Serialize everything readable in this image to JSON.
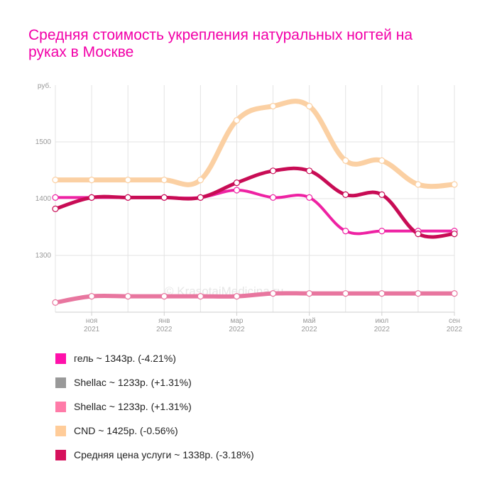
{
  "title": "Средняя стоимость укрепления натуральных ногтей на руках в Москве",
  "watermark": "© KrasotaiMedicina.ru",
  "chart_data": {
    "type": "line",
    "y_unit": "руб.",
    "ylim": [
      1200,
      1600
    ],
    "y_ticks": [
      {
        "value": 1300,
        "label": "1300"
      },
      {
        "value": 1400,
        "label": "1400"
      },
      {
        "value": 1500,
        "label": "1500"
      }
    ],
    "x_ticks": [
      {
        "month": "ноя",
        "year": "2021"
      },
      {
        "month": "янв",
        "year": "2022"
      },
      {
        "month": "мар",
        "year": "2022"
      },
      {
        "month": "май",
        "year": "2022"
      },
      {
        "month": "июл",
        "year": "2022"
      },
      {
        "month": "сен",
        "year": "2022"
      }
    ],
    "x": [
      "2021-10",
      "2021-11",
      "2021-12",
      "2022-01",
      "2022-02",
      "2022-03",
      "2022-04",
      "2022-05",
      "2022-06",
      "2022-07",
      "2022-08",
      "2022-09"
    ],
    "grid": true,
    "series": [
      {
        "name": "Shellac",
        "color": "#e8769f",
        "values": [
          1217,
          1228,
          1228,
          1228,
          1228,
          1228,
          1233,
          1233,
          1233,
          1233,
          1233,
          1233
        ]
      },
      {
        "name": "CND",
        "color": "#fbd0a3",
        "values": [
          1433,
          1433,
          1433,
          1433,
          1433,
          1538,
          1563,
          1563,
          1467,
          1467,
          1425,
          1425
        ]
      },
      {
        "name": "гель",
        "color": "#ee22a3",
        "values": [
          1402,
          1402,
          1402,
          1402,
          1402,
          1415,
          1402,
          1402,
          1343,
          1343,
          1343,
          1343
        ]
      },
      {
        "name": "Средняя цена услуги",
        "color": "#c80c55",
        "values": [
          1382,
          1402,
          1402,
          1402,
          1402,
          1428,
          1449,
          1449,
          1407,
          1407,
          1338,
          1338
        ]
      }
    ]
  },
  "legend": [
    {
      "label": "гель ~ 1343р. (-4.21%)",
      "color": "#ff11aa"
    },
    {
      "label": "Shellac ~ 1233р. (+1.31%)",
      "color": "#999999"
    },
    {
      "label": "Shellac ~ 1233р. (+1.31%)",
      "color": "#ff7ba8"
    },
    {
      "label": "CND ~ 1425р. (-0.56%)",
      "color": "#ffcc99"
    },
    {
      "label": "Средняя цена услуги ~ 1338р. (-3.18%)",
      "color": "#d6115c"
    }
  ]
}
